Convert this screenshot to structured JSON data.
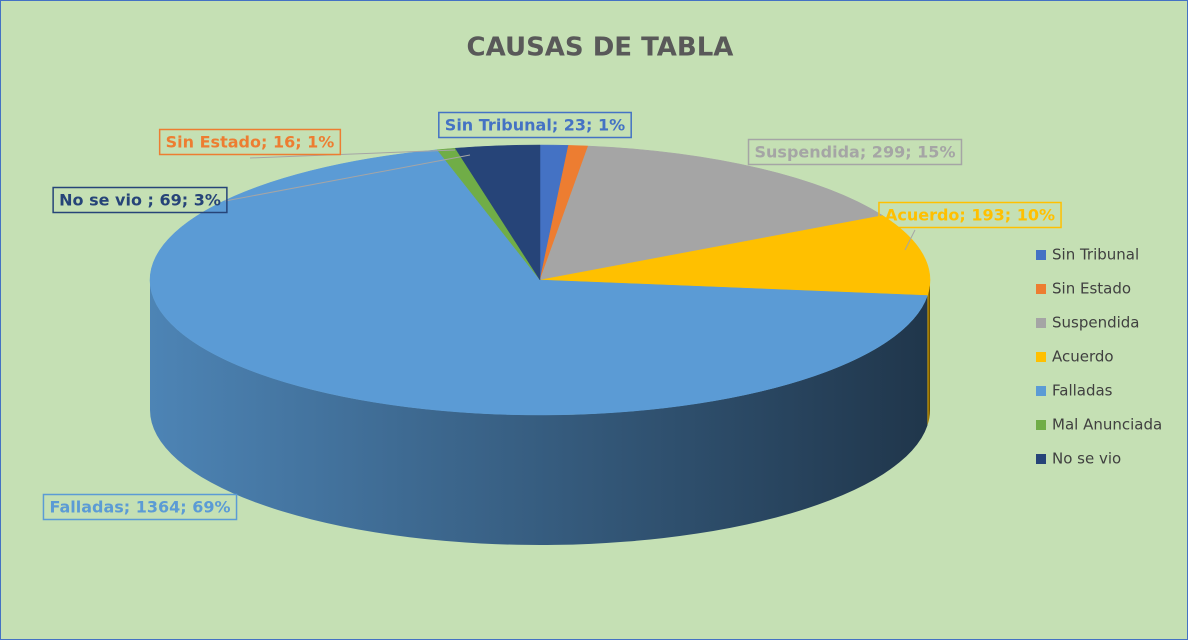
{
  "chart_data": {
    "type": "pie",
    "title": "CAUSAS DE TABLA",
    "categories": [
      "Sin Tribunal",
      "Sin Estado",
      "Suspendida",
      "Acuerdo",
      "Falladas",
      "Mal Anunciada",
      "No se vio"
    ],
    "values": [
      23,
      16,
      299,
      193,
      1364,
      15,
      69
    ],
    "value_labels": [
      "Sin Tribunal; 23; 1%",
      "Sin Estado; 16; 1%",
      "Suspendida; 299; 15%",
      "Acuerdo; 193; 10%",
      "Falladas; 1364; 69%",
      null,
      "No se vio ; 69; 3%"
    ],
    "colors": [
      "#4472c4",
      "#ed7d31",
      "#a5a5a5",
      "#ffc000",
      "#5b9bd5",
      "#70ad47",
      "#264478"
    ],
    "legend": "right"
  }
}
